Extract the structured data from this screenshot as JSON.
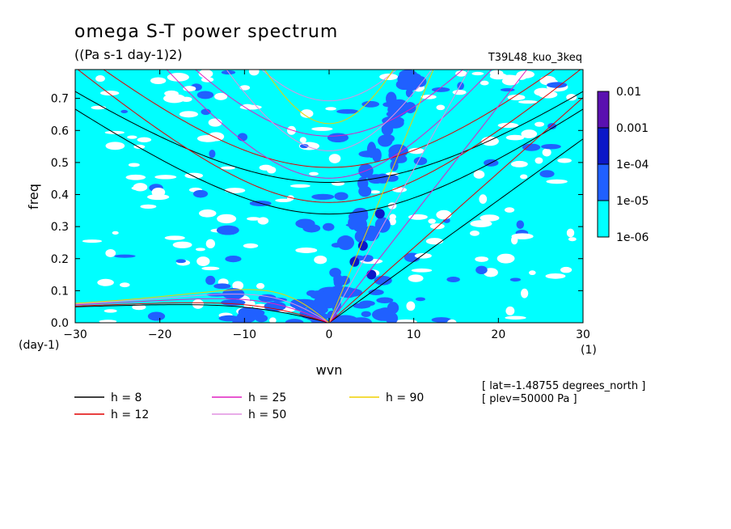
{
  "chart_data": {
    "type": "heatmap",
    "title": "omega S-T power spectrum",
    "units": "((Pa s-1 day-1)2)",
    "run_label": "T39L48_kuo_3keq",
    "xlabel": "wvn",
    "ylabel": "freq",
    "x_unit": "(1)",
    "y_unit": "(day-1)",
    "xlim": [
      -30,
      30
    ],
    "ylim": [
      0,
      0.79
    ],
    "xticks": [
      "−30",
      "−20",
      "−10",
      "0",
      "10",
      "20",
      "30"
    ],
    "xtick_values": [
      -30,
      -20,
      -10,
      0,
      10,
      20,
      30
    ],
    "yticks": [
      "0.0",
      "0.1",
      "0.2",
      "0.3",
      "0.4",
      "0.5",
      "0.6",
      "0.7"
    ],
    "ytick_values": [
      0,
      0.1,
      0.2,
      0.3,
      0.4,
      0.5,
      0.6,
      0.7
    ],
    "colorbar": {
      "levels": [
        "0.01",
        "0.001",
        "1e-04",
        "1e-05",
        "1e-06"
      ],
      "colors": [
        "#5a10b0",
        "#0c18c8",
        "#2060ff",
        "#00ffff"
      ]
    },
    "dispersion_curves": [
      {
        "label": "h =  8",
        "h": 8,
        "color": "#000000"
      },
      {
        "label": "h = 12",
        "h": 12,
        "color": "#e00000"
      },
      {
        "label": "h = 25",
        "h": 25,
        "color": "#e020c0"
      },
      {
        "label": "h = 50",
        "h": 50,
        "color": "#e090e0"
      },
      {
        "label": "h = 90",
        "h": 90,
        "color": "#f0d000"
      }
    ],
    "annotations": [
      "[ lat=-1.48755 degrees_north ]",
      "[ plev=50000 Pa ]"
    ]
  }
}
